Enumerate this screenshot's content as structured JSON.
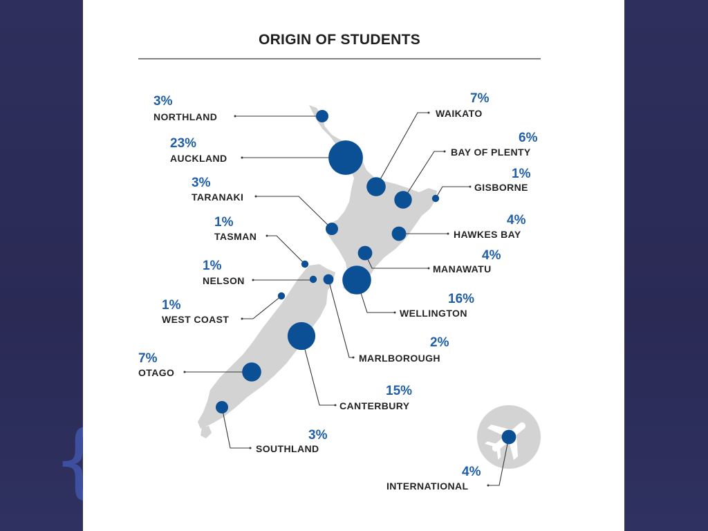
{
  "title": "ORIGIN OF STUDENTS",
  "colors": {
    "bubble": "#0b4f95",
    "percent_text": "#1f5ea8",
    "land": "#d3d3d3",
    "background": "#2c2c54"
  },
  "icon": "airplane-icon",
  "regions": [
    {
      "key": "northland",
      "name": "NORTHLAND",
      "percent": "3%",
      "value": 3
    },
    {
      "key": "auckland",
      "name": "AUCKLAND",
      "percent": "23%",
      "value": 23
    },
    {
      "key": "taranaki",
      "name": "TARANAKI",
      "percent": "3%",
      "value": 3
    },
    {
      "key": "tasman",
      "name": "TASMAN",
      "percent": "1%",
      "value": 1
    },
    {
      "key": "nelson",
      "name": "NELSON",
      "percent": "1%",
      "value": 1
    },
    {
      "key": "west_coast",
      "name": "WEST COAST",
      "percent": "1%",
      "value": 1
    },
    {
      "key": "otago",
      "name": "OTAGO",
      "percent": "7%",
      "value": 7
    },
    {
      "key": "southland",
      "name": "SOUTHLAND",
      "percent": "3%",
      "value": 3
    },
    {
      "key": "waikato",
      "name": "WAIKATO",
      "percent": "7%",
      "value": 7
    },
    {
      "key": "bay_of_plenty",
      "name": "BAY OF PLENTY",
      "percent": "6%",
      "value": 6
    },
    {
      "key": "gisborne",
      "name": "GISBORNE",
      "percent": "1%",
      "value": 1
    },
    {
      "key": "hawkes_bay",
      "name": "HAWKES BAY",
      "percent": "4%",
      "value": 4
    },
    {
      "key": "manawatu",
      "name": "MANAWATU",
      "percent": "4%",
      "value": 4
    },
    {
      "key": "wellington",
      "name": "WELLINGTON",
      "percent": "16%",
      "value": 16
    },
    {
      "key": "marlborough",
      "name": "MARLBOROUGH",
      "percent": "2%",
      "value": 2
    },
    {
      "key": "canterbury",
      "name": "CANTERBURY",
      "percent": "15%",
      "value": 15
    },
    {
      "key": "international",
      "name": "INTERNATIONAL",
      "percent": "4%",
      "value": 4
    }
  ]
}
